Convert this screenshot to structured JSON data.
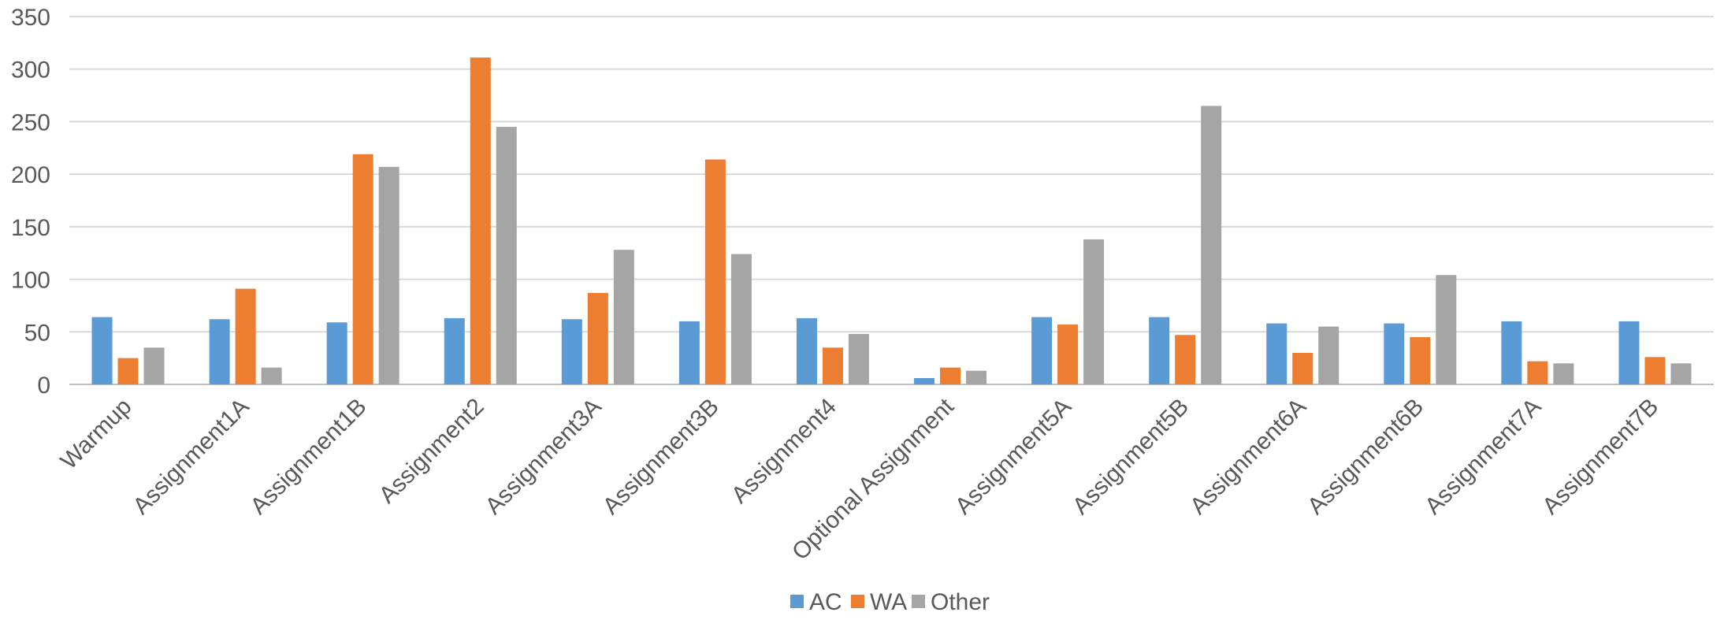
{
  "chart_data": {
    "type": "bar",
    "title": "",
    "xlabel": "",
    "ylabel": "",
    "ylim": [
      0,
      350
    ],
    "yticks": [
      0,
      50,
      100,
      150,
      200,
      250,
      300,
      350
    ],
    "grid": true,
    "legend_position": "bottom",
    "categories": [
      "Warmup",
      "Assignment1A",
      "Assignment1B",
      "Assignment2",
      "Assignment3A",
      "Assignment3B",
      "Assignment4",
      "Optional Assignment",
      "Assignment5A",
      "Assignment5B",
      "Assignment6A",
      "Assignment6B",
      "Assignment7A",
      "Assignment7B"
    ],
    "series": [
      {
        "name": "AC",
        "color": "#5B9BD5",
        "values": [
          64,
          62,
          59,
          63,
          62,
          60,
          63,
          6,
          64,
          64,
          58,
          58,
          60,
          60
        ]
      },
      {
        "name": "WA",
        "color": "#ED7D31",
        "values": [
          25,
          91,
          219,
          311,
          87,
          214,
          35,
          16,
          57,
          47,
          30,
          45,
          22,
          26
        ]
      },
      {
        "name": "Other",
        "color": "#A5A5A5",
        "values": [
          35,
          16,
          207,
          245,
          128,
          124,
          48,
          13,
          138,
          265,
          55,
          104,
          20,
          20
        ]
      }
    ]
  }
}
